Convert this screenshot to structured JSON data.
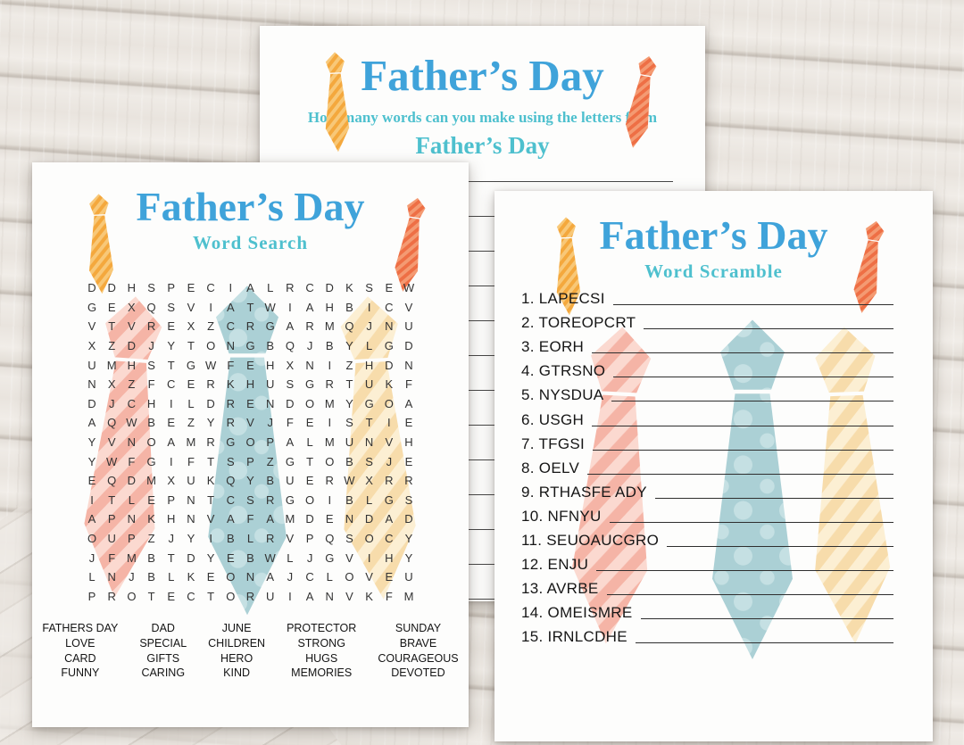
{
  "colors": {
    "title_blue": "#3fa3da",
    "subtitle_teal": "#4ec0ce",
    "tie_orange": "#f4a83d",
    "tie_orange_light": "#f8c878",
    "tie_red": "#ee6f45",
    "tie_red_light": "#f49a72",
    "tie_pink": "#f5b4a6",
    "tie_pink_light": "#fbd9d0",
    "tie_teal": "#abd0d5",
    "tie_teal_light": "#c5e0e3",
    "tie_yellow": "#f7dcab",
    "tie_yellow_light": "#fcefd3"
  },
  "top_sheet": {
    "title": "Father’s Day",
    "subtitle": "How many words can you make using the letters from",
    "subject": "Father’s Day"
  },
  "word_search": {
    "title": "Father’s Day",
    "subtitle": "Word Search",
    "grid_rows": [
      "DDHSPECIALRCDKSEW",
      "GEXQSVIATWIAHBICV",
      "VTVREXZCRGARMQJNU",
      "XZDJYTONGBQJBYLGD",
      "UMHSTGWFEHXNIZHDN",
      "NXZFCERKHUSGRTUKF",
      "DJCHILDRENDOMYGOA",
      "AQWBEZYRVJFEISTIE",
      "YVNOAMRGOPALMUNVH",
      "YWFGIFTSPZGTOBSJE",
      "EQDMXUKQYBUERWXRR",
      "ITLEPNTCSRGOIBLGS",
      "APNKHNVAFAMDENDAD",
      "OUPZJYIBLRVPQSOCY",
      "JFMBTDYEBWLJGVIHY",
      "LNJBLKEONAJCLOVEU",
      "PROTECTORUIANVKFM"
    ],
    "word_columns": [
      [
        "FATHERS DAY",
        "LOVE",
        "CARD",
        "FUNNY"
      ],
      [
        "DAD",
        "SPECIAL",
        "GIFTS",
        "CARING"
      ],
      [
        "JUNE",
        "CHILDREN",
        "HERO",
        "KIND"
      ],
      [
        "PROTECTOR",
        "STRONG",
        "HUGS",
        "MEMORIES"
      ],
      [
        "SUNDAY",
        "BRAVE",
        "COURAGEOUS",
        "DEVOTED"
      ]
    ]
  },
  "word_scramble": {
    "title": "Father’s Day",
    "subtitle": "Word Scramble",
    "items": [
      "LAPECSI",
      "TOREOPCRT",
      "EORH",
      "GTRSNO",
      "NYSDUA",
      "USGH",
      "TFGSI",
      "OELV",
      "RTHASFE ADY",
      "NFNYU",
      "SEUOAUCGRO",
      "ENJU",
      "AVRBE",
      "OMEISMRE",
      "IRNLCDHE"
    ]
  }
}
